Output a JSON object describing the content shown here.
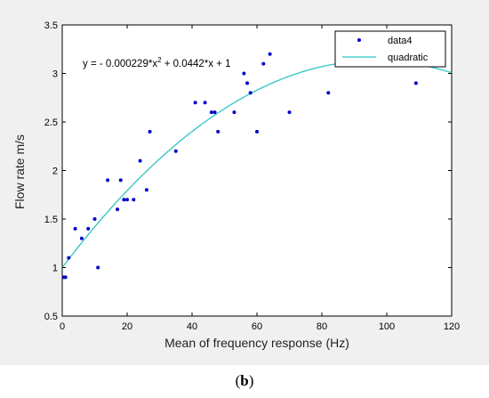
{
  "caption": {
    "open": "(",
    "letter": "b",
    "close": ")"
  },
  "colors": {
    "points": "#0000cc",
    "curve": "#2ec4c4",
    "background": "#f0f0f0",
    "plot_bg": "#ffffff"
  },
  "chart_data": {
    "type": "scatter",
    "xlabel": "Mean of frequency response (Hz)",
    "ylabel": "Flow rate m/s",
    "xlim": [
      0,
      120
    ],
    "ylim": [
      0.5,
      3.5
    ],
    "xticks": [
      0,
      20,
      40,
      60,
      80,
      100,
      120
    ],
    "yticks": [
      0.5,
      1,
      1.5,
      2,
      2.5,
      3,
      3.5
    ],
    "annotation": {
      "prefix": "y = - 0.000229*x",
      "sup": "2",
      "suffix": " + 0.0442*x + 1"
    },
    "legend_position": "top-right",
    "series": [
      {
        "name": "data4",
        "kind": "points",
        "x": [
          0.5,
          1,
          2,
          4,
          6,
          8,
          10,
          11,
          14,
          17,
          18,
          19,
          20,
          22,
          24,
          26,
          27,
          35,
          41,
          44,
          46,
          47,
          48,
          53,
          56,
          57,
          58,
          60,
          62,
          64,
          70,
          82,
          109
        ],
        "y": [
          0.9,
          0.9,
          1.1,
          1.4,
          1.3,
          1.4,
          1.5,
          1.0,
          1.9,
          1.6,
          1.9,
          1.7,
          1.7,
          1.7,
          2.1,
          1.8,
          2.4,
          2.2,
          2.7,
          2.7,
          2.6,
          2.6,
          2.4,
          2.6,
          3.0,
          2.9,
          2.8,
          2.4,
          3.1,
          3.2,
          2.6,
          2.8,
          2.9
        ]
      },
      {
        "name": "quadratic",
        "kind": "curve",
        "coefficients": {
          "a": -0.000229,
          "b": 0.0442,
          "c": 1
        }
      }
    ]
  }
}
